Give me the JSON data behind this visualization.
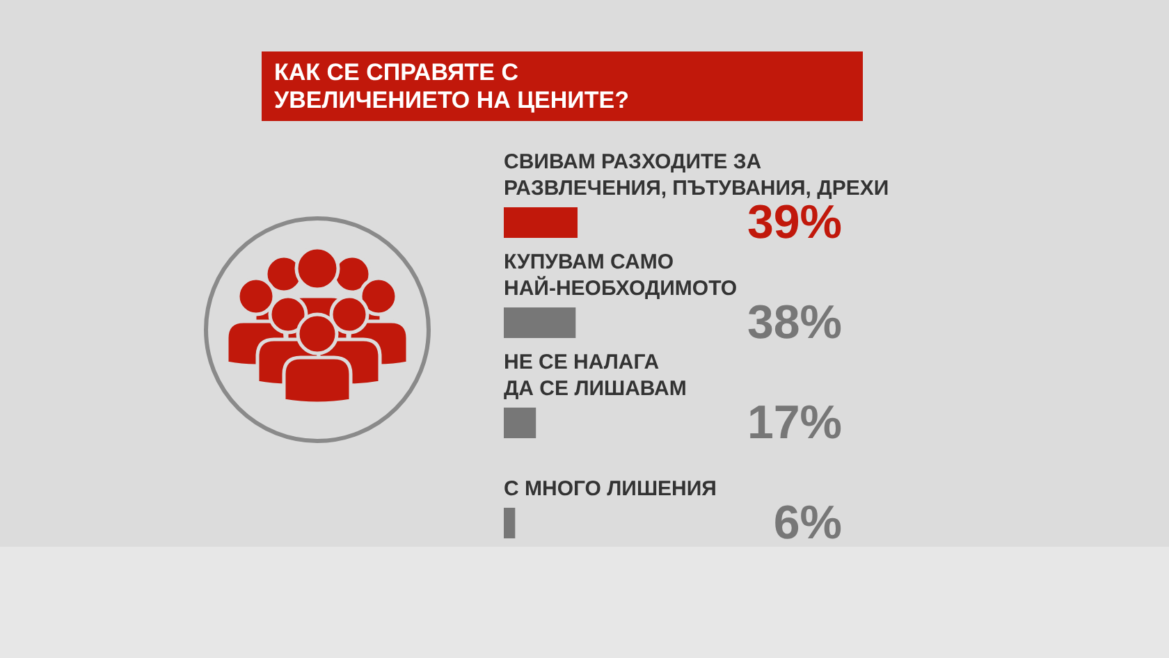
{
  "chart_data": {
    "type": "bar",
    "orientation": "horizontal",
    "title": "КАК СЕ СПРАВЯТЕ С\nУВЕЛИЧЕНИЕТО НА ЦЕНИТЕ?",
    "categories": [
      "СВИВАМ РАЗХОДИТЕ ЗА\nРАЗВЛЕЧЕНИЯ, ПЪТУВАНИЯ, ДРЕХИ",
      "КУПУВАМ САМО\nНАЙ-НЕОБХОДИМОТО",
      "НЕ СЕ НАЛАГА\nДА СЕ ЛИШАВАМ",
      "С МНОГО ЛИШЕНИЯ"
    ],
    "values": [
      39,
      38,
      17,
      6
    ],
    "colors": [
      "#c1180b",
      "#777777",
      "#777777",
      "#777777"
    ],
    "value_labels": [
      "39%",
      "38%",
      "17%",
      "6%"
    ],
    "tick_labels": "y"
  }
}
